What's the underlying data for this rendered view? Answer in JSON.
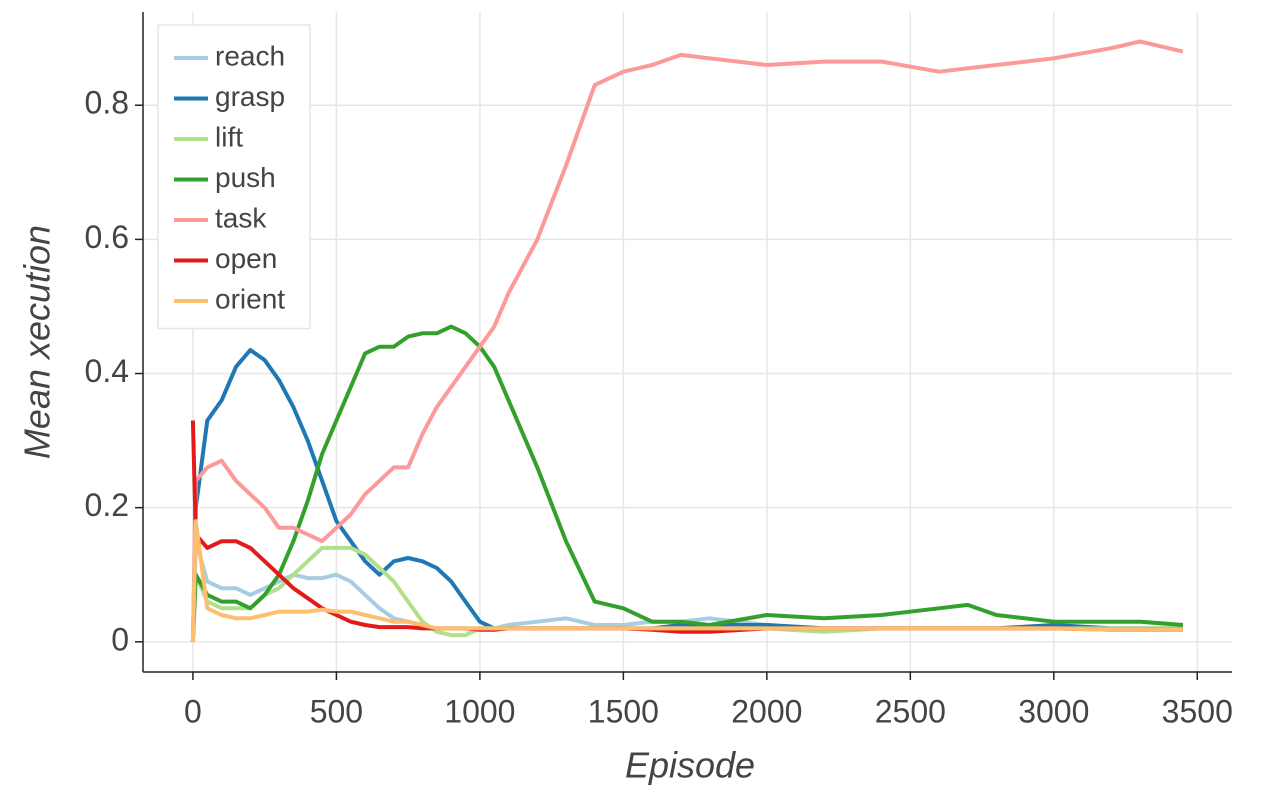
{
  "chart_data": {
    "type": "line",
    "xlabel": "Episode",
    "ylabel": "Mean xecution",
    "x": [
      0,
      10,
      50,
      100,
      150,
      200,
      250,
      300,
      350,
      400,
      450,
      500,
      550,
      600,
      650,
      700,
      750,
      800,
      850,
      900,
      950,
      1000,
      1050,
      1100,
      1200,
      1300,
      1400,
      1500,
      1600,
      1700,
      1800,
      2000,
      2200,
      2400,
      2600,
      2700,
      2800,
      3000,
      3200,
      3300,
      3450
    ],
    "series": [
      {
        "name": "reach",
        "color": "#a6cee3",
        "values": [
          0.0,
          0.15,
          0.09,
          0.08,
          0.08,
          0.07,
          0.08,
          0.09,
          0.1,
          0.095,
          0.095,
          0.1,
          0.09,
          0.07,
          0.05,
          0.035,
          0.03,
          0.025,
          0.02,
          0.02,
          0.02,
          0.02,
          0.02,
          0.025,
          0.03,
          0.035,
          0.025,
          0.025,
          0.03,
          0.03,
          0.035,
          0.025,
          0.02,
          0.02,
          0.02,
          0.02,
          0.02,
          0.02,
          0.02,
          0.02,
          0.02
        ]
      },
      {
        "name": "grasp",
        "color": "#1f78b4",
        "values": [
          0.0,
          0.2,
          0.33,
          0.36,
          0.41,
          0.435,
          0.42,
          0.39,
          0.35,
          0.3,
          0.24,
          0.18,
          0.15,
          0.12,
          0.1,
          0.12,
          0.125,
          0.12,
          0.11,
          0.09,
          0.06,
          0.03,
          0.02,
          0.02,
          0.02,
          0.02,
          0.02,
          0.02,
          0.02,
          0.025,
          0.025,
          0.025,
          0.02,
          0.02,
          0.02,
          0.02,
          0.02,
          0.025,
          0.02,
          0.02,
          0.02
        ]
      },
      {
        "name": "lift",
        "color": "#b2df8a",
        "values": [
          0.0,
          0.1,
          0.06,
          0.05,
          0.05,
          0.05,
          0.07,
          0.08,
          0.1,
          0.12,
          0.14,
          0.14,
          0.14,
          0.13,
          0.11,
          0.09,
          0.06,
          0.03,
          0.015,
          0.01,
          0.01,
          0.02,
          0.02,
          0.02,
          0.02,
          0.02,
          0.02,
          0.02,
          0.02,
          0.02,
          0.02,
          0.02,
          0.015,
          0.02,
          0.02,
          0.02,
          0.02,
          0.02,
          0.02,
          0.02,
          0.02
        ]
      },
      {
        "name": "push",
        "color": "#33a02c",
        "values": [
          0.0,
          0.1,
          0.07,
          0.06,
          0.06,
          0.05,
          0.07,
          0.1,
          0.15,
          0.21,
          0.28,
          0.33,
          0.38,
          0.43,
          0.44,
          0.44,
          0.455,
          0.46,
          0.46,
          0.47,
          0.46,
          0.44,
          0.41,
          0.36,
          0.26,
          0.15,
          0.06,
          0.05,
          0.03,
          0.03,
          0.025,
          0.04,
          0.035,
          0.04,
          0.05,
          0.055,
          0.04,
          0.03,
          0.03,
          0.03,
          0.025
        ]
      },
      {
        "name": "task",
        "color": "#fb9a99",
        "values": [
          0.0,
          0.24,
          0.26,
          0.27,
          0.24,
          0.22,
          0.2,
          0.17,
          0.17,
          0.16,
          0.15,
          0.17,
          0.19,
          0.22,
          0.24,
          0.26,
          0.26,
          0.31,
          0.35,
          0.38,
          0.41,
          0.44,
          0.47,
          0.52,
          0.6,
          0.71,
          0.83,
          0.85,
          0.86,
          0.875,
          0.87,
          0.86,
          0.865,
          0.865,
          0.85,
          0.855,
          0.86,
          0.87,
          0.885,
          0.895,
          0.88
        ]
      },
      {
        "name": "open",
        "color": "#e31a1c",
        "values": [
          0.33,
          0.16,
          0.14,
          0.15,
          0.15,
          0.14,
          0.12,
          0.1,
          0.08,
          0.065,
          0.05,
          0.04,
          0.03,
          0.025,
          0.022,
          0.022,
          0.022,
          0.02,
          0.02,
          0.02,
          0.02,
          0.018,
          0.018,
          0.02,
          0.02,
          0.02,
          0.02,
          0.02,
          0.018,
          0.015,
          0.015,
          0.02,
          0.02,
          0.02,
          0.02,
          0.02,
          0.02,
          0.02,
          0.018,
          0.018,
          0.018
        ]
      },
      {
        "name": "orient",
        "color": "#fdbf6f",
        "values": [
          0.0,
          0.18,
          0.05,
          0.04,
          0.035,
          0.035,
          0.04,
          0.045,
          0.045,
          0.045,
          0.048,
          0.045,
          0.045,
          0.04,
          0.035,
          0.03,
          0.03,
          0.025,
          0.02,
          0.02,
          0.02,
          0.02,
          0.02,
          0.02,
          0.02,
          0.02,
          0.02,
          0.02,
          0.02,
          0.02,
          0.02,
          0.02,
          0.02,
          0.02,
          0.02,
          0.02,
          0.02,
          0.02,
          0.018,
          0.018,
          0.018
        ]
      }
    ],
    "xlim": [
      -174,
      3621
    ],
    "ylim": [
      -0.045,
      0.939
    ],
    "xticks": [
      0,
      500,
      1000,
      1500,
      2000,
      2500,
      3000,
      3500
    ],
    "yticks": [
      0,
      0.2,
      0.4,
      0.6,
      0.8
    ],
    "grid": true,
    "legend": "upper left"
  }
}
